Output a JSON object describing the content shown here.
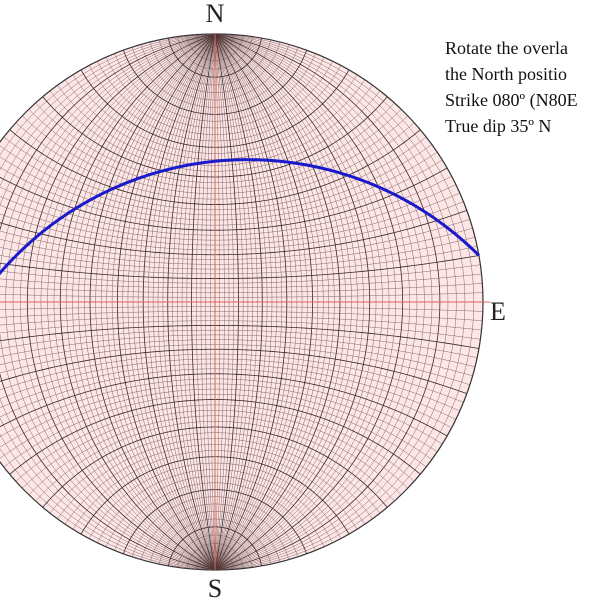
{
  "labels": {
    "north": "N",
    "east": "E",
    "south": "S"
  },
  "instructions": [
    "Rotate the overla",
    "the North positio",
    "Strike 080º (N80E",
    "True dip 35º N"
  ]
}
